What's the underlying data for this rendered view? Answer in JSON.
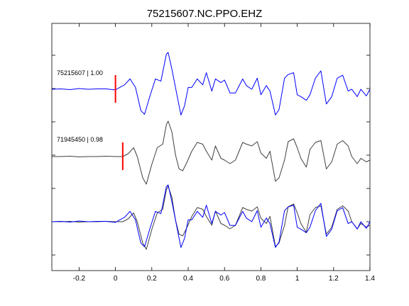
{
  "chart_data": {
    "type": "line",
    "title": "75215607.NC.PPO.EHZ",
    "xlabel": "",
    "ylabel": "",
    "xlim": [
      -0.35,
      1.4
    ],
    "x_ticks": [
      -0.2,
      0,
      0.2,
      0.4,
      0.6,
      0.8,
      1,
      1.2,
      1.4
    ],
    "x_tick_labels": [
      "-0.2",
      "0",
      "0.2",
      "0.4",
      "0.6",
      "0.8",
      "1",
      "1.2",
      "1.4"
    ],
    "y_ticks_shown": 7,
    "grid": false,
    "colors": {
      "primary": "#0000ff",
      "secondary": "#404040",
      "pick": "#ff0000"
    },
    "series": [
      {
        "name": "75215607 | 1.00",
        "color": "#0000ff",
        "pick_time": 0.0,
        "x": [
          -0.35,
          -0.3,
          -0.25,
          -0.2,
          -0.15,
          -0.1,
          -0.05,
          0.0,
          0.02,
          0.05,
          0.08,
          0.11,
          0.14,
          0.16,
          0.19,
          0.22,
          0.25,
          0.28,
          0.29,
          0.31,
          0.33,
          0.36,
          0.38,
          0.4,
          0.42,
          0.45,
          0.48,
          0.5,
          0.53,
          0.55,
          0.58,
          0.6,
          0.63,
          0.66,
          0.7,
          0.72,
          0.75,
          0.78,
          0.8,
          0.83,
          0.85,
          0.88,
          0.9,
          0.93,
          0.95,
          0.98,
          1.0,
          1.02,
          1.05,
          1.07,
          1.1,
          1.13,
          1.16,
          1.19,
          1.22,
          1.25,
          1.28,
          1.3,
          1.33,
          1.35,
          1.38,
          1.4
        ],
        "y": [
          0.0,
          0.01,
          -0.01,
          0.02,
          0.0,
          0.01,
          0.01,
          -0.02,
          0.04,
          0.12,
          0.28,
          0.05,
          -0.58,
          -0.68,
          -0.18,
          0.28,
          0.22,
          0.95,
          1.0,
          0.55,
          0.05,
          -0.7,
          -0.45,
          0.05,
          0.05,
          0.28,
          0.12,
          0.45,
          -0.05,
          0.28,
          0.18,
          0.25,
          -0.1,
          -0.1,
          0.28,
          0.1,
          0.0,
          0.3,
          -0.15,
          0.1,
          -0.05,
          -0.7,
          -0.55,
          0.3,
          0.4,
          0.45,
          -0.15,
          -0.2,
          -0.3,
          -0.15,
          0.3,
          0.5,
          -0.4,
          -0.2,
          0.3,
          0.38,
          -0.05,
          0.0,
          -0.2,
          0.0,
          -0.18,
          0.0
        ]
      },
      {
        "name": "71945450 | 0.98",
        "color": "#404040",
        "pick_time": 0.04,
        "x": [
          -0.35,
          -0.3,
          -0.25,
          -0.2,
          -0.15,
          -0.1,
          -0.05,
          0.0,
          0.04,
          0.07,
          0.1,
          0.12,
          0.15,
          0.17,
          0.2,
          0.23,
          0.26,
          0.28,
          0.29,
          0.31,
          0.33,
          0.35,
          0.37,
          0.39,
          0.42,
          0.45,
          0.48,
          0.5,
          0.53,
          0.55,
          0.58,
          0.6,
          0.63,
          0.66,
          0.7,
          0.72,
          0.75,
          0.78,
          0.8,
          0.83,
          0.85,
          0.88,
          0.9,
          0.93,
          0.95,
          0.98,
          1.0,
          1.02,
          1.05,
          1.07,
          1.1,
          1.13,
          1.16,
          1.19,
          1.22,
          1.25,
          1.28,
          1.3,
          1.33,
          1.35,
          1.38,
          1.4
        ],
        "y": [
          0.0,
          0.0,
          0.01,
          -0.01,
          0.0,
          0.0,
          0.01,
          0.0,
          0.0,
          0.08,
          0.25,
          0.0,
          -0.6,
          -0.78,
          -0.22,
          0.25,
          0.35,
          0.9,
          1.0,
          0.7,
          0.05,
          -0.35,
          -0.4,
          -0.2,
          0.15,
          0.4,
          0.35,
          0.15,
          -0.1,
          0.3,
          -0.05,
          -0.1,
          -0.2,
          -0.1,
          0.4,
          0.35,
          0.3,
          0.42,
          0.1,
          -0.05,
          0.15,
          -0.7,
          -0.6,
          -0.1,
          0.42,
          0.5,
          0.25,
          -0.05,
          -0.3,
          0.2,
          0.4,
          0.45,
          -0.35,
          -0.15,
          0.35,
          0.45,
          0.3,
          0.0,
          -0.2,
          -0.05,
          -0.15,
          -0.1
        ]
      }
    ],
    "labels": {
      "trace1": "75215607 | 1.00",
      "trace2": "71945450 | 0.98"
    }
  }
}
